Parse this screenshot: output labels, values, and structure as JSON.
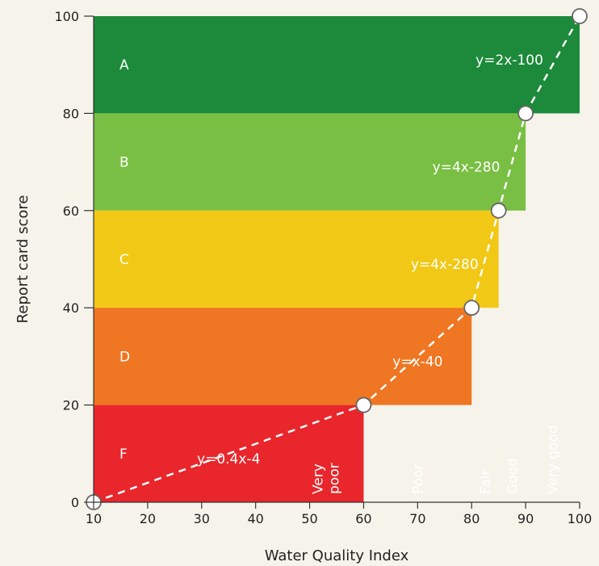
{
  "chart_data": {
    "type": "line",
    "title": "",
    "xlabel": "Water Quality Index",
    "ylabel": "Report card score",
    "xlim": [
      10,
      100
    ],
    "ylim": [
      0,
      100
    ],
    "x_ticks": [
      10,
      20,
      30,
      40,
      50,
      60,
      70,
      80,
      90,
      100
    ],
    "y_ticks": [
      0,
      20,
      40,
      60,
      80,
      100
    ],
    "grid": false,
    "points": [
      {
        "x": 10,
        "y": 0
      },
      {
        "x": 60,
        "y": 20
      },
      {
        "x": 80,
        "y": 40
      },
      {
        "x": 85,
        "y": 60
      },
      {
        "x": 90,
        "y": 80
      },
      {
        "x": 100,
        "y": 100
      }
    ],
    "score_bands": [
      {
        "grade": "F",
        "y_from": 0,
        "y_to": 20,
        "x_from": 10,
        "x_to": 60,
        "color": "#e8262b"
      },
      {
        "grade": "D",
        "y_from": 20,
        "y_to": 40,
        "x_from": 10,
        "x_to": 80,
        "color": "#ef7622"
      },
      {
        "grade": "C",
        "y_from": 40,
        "y_to": 60,
        "x_from": 10,
        "x_to": 85,
        "color": "#f2c817"
      },
      {
        "grade": "B",
        "y_from": 60,
        "y_to": 80,
        "x_from": 10,
        "x_to": 90,
        "color": "#79bf43"
      },
      {
        "grade": "A",
        "y_from": 80,
        "y_to": 100,
        "x_from": 10,
        "x_to": 100,
        "color": "#1c8a3a"
      }
    ],
    "wqi_categories": [
      {
        "lines": [
          "Very",
          "poor"
        ],
        "x_center": 53
      },
      {
        "lines": [
          "Poor"
        ],
        "x_center": 70
      },
      {
        "lines": [
          "Fair"
        ],
        "x_center": 82.5
      },
      {
        "lines": [
          "Good"
        ],
        "x_center": 87.5
      },
      {
        "lines": [
          "Very good"
        ],
        "x_center": 95
      }
    ],
    "equations": [
      {
        "text": "y=0.4x-4",
        "x": 35,
        "y": 9
      },
      {
        "text": "y=x-40",
        "x": 70,
        "y": 29
      },
      {
        "text": "y=4x-280",
        "x": 75,
        "y": 49
      },
      {
        "text": "y=4x-280",
        "x": 79,
        "y": 69
      },
      {
        "text": "y=2x-100",
        "x": 87,
        "y": 91
      }
    ]
  }
}
